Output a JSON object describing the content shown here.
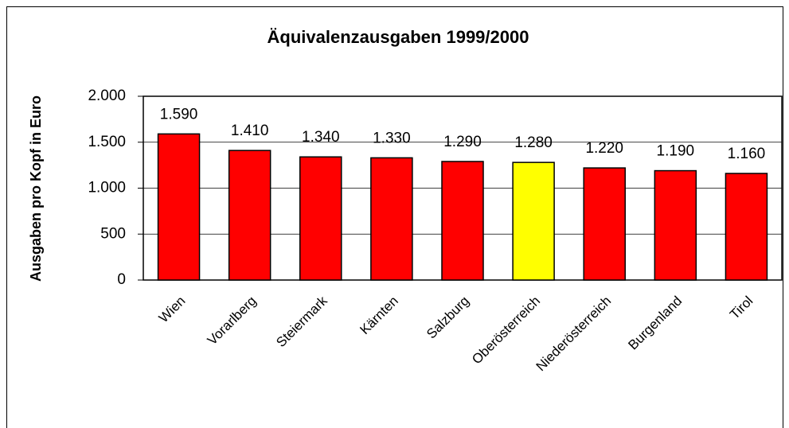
{
  "chart_data": {
    "type": "bar",
    "title": "Äquivalenzausgaben 1999/2000",
    "y_label": "Ausgaben pro Kopf in Euro",
    "categories": [
      "Wien",
      "Vorarlberg",
      "Steiermark",
      "Kärnten",
      "Salzburg",
      "Oberösterreich",
      "Niederösterreich",
      "Burgenland",
      "Tirol"
    ],
    "values": [
      1590,
      1410,
      1340,
      1330,
      1290,
      1280,
      1220,
      1190,
      1160
    ],
    "value_labels": [
      "1.590",
      "1.410",
      "1.340",
      "1.330",
      "1.290",
      "1.280",
      "1.220",
      "1.190",
      "1.160"
    ],
    "colors": [
      "#ff0000",
      "#ff0000",
      "#ff0000",
      "#ff0000",
      "#ff0000",
      "#ffff00",
      "#ff0000",
      "#ff0000",
      "#ff0000"
    ],
    "ylim": [
      0,
      2000
    ],
    "yticks": [
      0,
      500,
      {
        "value": 1000,
        "label": "1.000"
      },
      {
        "value": 1500,
        "label": "1.500"
      },
      {
        "value": 2000,
        "label": "2.000"
      }
    ],
    "grid": true
  }
}
